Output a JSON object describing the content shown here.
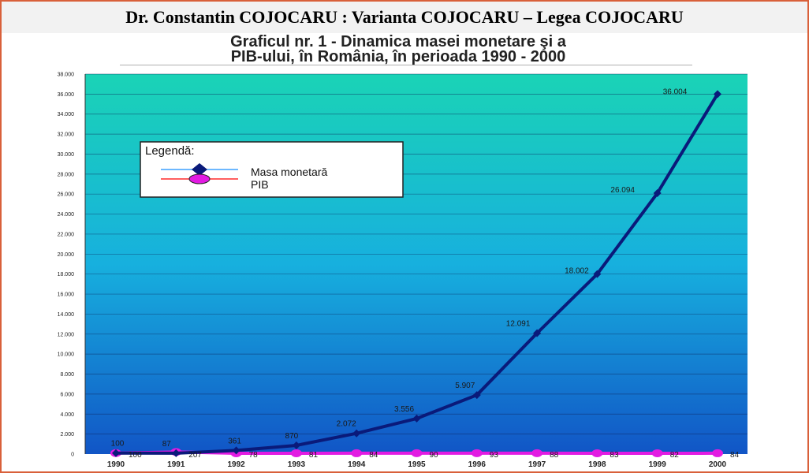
{
  "header": {
    "title": "Dr. Constantin COJOCARU : Varianta COJOCARU – Legea COJOCARU"
  },
  "colors": {
    "frame_border": "#d9603a",
    "plot_top": "#1ad3b6",
    "plot_mid": "#17b0de",
    "plot_bottom": "#1155c6",
    "series_masa": "#0a1a7a",
    "series_pib": "#e21be2",
    "legend_line": "#3da0ff",
    "legend_line_pib": "#ff2a2a"
  },
  "chart_data": {
    "type": "line",
    "title_line1": "Graficul nr. 1 - Dinamica masei monetare şi a",
    "title_line2": "PIB-ului, în România, în perioada 1990 - 2000",
    "xlabel": "",
    "ylabel": "",
    "x": [
      "1990",
      "1991",
      "1992",
      "1993",
      "1994",
      "1995",
      "1996",
      "1997",
      "1998",
      "1999",
      "2000"
    ],
    "ylim": [
      0,
      38000
    ],
    "y_ticks": [
      0,
      2000,
      4000,
      6000,
      8000,
      10000,
      12000,
      14000,
      16000,
      18000,
      20000,
      22000,
      24000,
      26000,
      28000,
      30000,
      32000,
      34000,
      36000,
      38000
    ],
    "y_tick_labels": [
      "0",
      "2.000",
      "4.000",
      "6.000",
      "8.000",
      "10.000",
      "12.000",
      "14.000",
      "16.000",
      "18.000",
      "20.000",
      "22.000",
      "24.000",
      "26.000",
      "28.000",
      "30.000",
      "32.000",
      "34.000",
      "36.000",
      "38.000"
    ],
    "grid": true,
    "legend": {
      "title": "Legendă:",
      "placement": "top-left",
      "entries": [
        "Masa monetară",
        "PIB"
      ]
    },
    "series": [
      {
        "name": "Masa monetară",
        "marker": "diamond",
        "values": [
          100,
          87,
          361,
          870,
          2072,
          3556,
          5907,
          12091,
          18002,
          26094,
          36004
        ],
        "labels": [
          "100",
          "87",
          "361",
          "870",
          "2.072",
          "3.556",
          "5.907",
          "12.091",
          "18.002",
          "26.094",
          "36.004"
        ]
      },
      {
        "name": "PIB",
        "marker": "circle",
        "values": [
          100,
          207,
          78,
          81,
          84,
          90,
          93,
          88,
          83,
          82,
          84
        ],
        "labels": [
          "100",
          "207",
          "78",
          "81",
          "84",
          "90",
          "93",
          "88",
          "83",
          "82",
          "84"
        ]
      }
    ]
  }
}
